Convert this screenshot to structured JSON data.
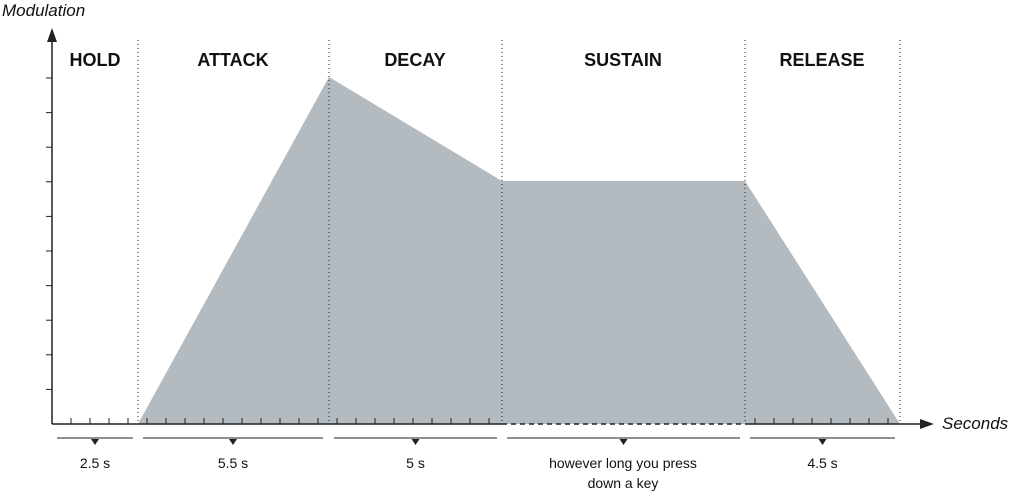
{
  "axes": {
    "y_label": "Modulation",
    "x_label": "Seconds"
  },
  "phases": [
    {
      "name": "HOLD",
      "duration": "2.5 s"
    },
    {
      "name": "ATTACK",
      "duration": "5.5 s"
    },
    {
      "name": "DECAY",
      "duration": "5 s"
    },
    {
      "name": "SUSTAIN",
      "duration": "however long you press down a key"
    },
    {
      "name": "RELEASE",
      "duration": "4.5 s"
    }
  ]
}
